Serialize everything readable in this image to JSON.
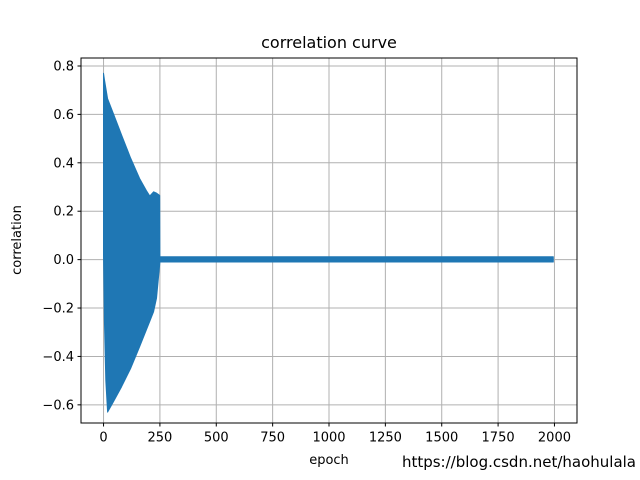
{
  "figure": {
    "watermark": "https://blog.csdn.net/haohulala"
  },
  "chart_data": {
    "type": "area",
    "title": "correlation curve",
    "xlabel": "epoch",
    "ylabel": "correlation",
    "xlim": [
      -100,
      2100
    ],
    "ylim": [
      -0.675,
      0.833
    ],
    "grid": true,
    "legend": "none",
    "x_ticks": [
      0,
      250,
      500,
      750,
      1000,
      1250,
      1500,
      1750,
      2000
    ],
    "x_tick_labels": [
      "0",
      "250",
      "500",
      "750",
      "1000",
      "1250",
      "1500",
      "1750",
      "2000"
    ],
    "y_ticks": [
      0.8,
      0.6,
      0.4,
      0.2,
      0.0,
      -0.2,
      -0.4,
      -0.6
    ],
    "y_tick_labels": [
      "0.8",
      "0.6",
      "0.4",
      "0.2",
      "0.0",
      "−0.2",
      "−0.4",
      "−0.6"
    ],
    "colors": {
      "series": "#1f77b4",
      "grid": "#b0b0b0",
      "spine": "#000000",
      "text": "#000000",
      "watermark": "#e9e9e9"
    },
    "series": [
      {
        "name": "correlation",
        "render": "envelope-fill",
        "note": "dense oscillating signal: amplitude decays from [-0.63, 0.77] at epoch 0 to ~0 near epoch 250, then a thin band around 0.0 until epoch 2000",
        "envelope_points": [
          {
            "x": 0,
            "upper": 0.77,
            "lower": 0.02
          },
          {
            "x": 4,
            "upper": 0.745,
            "lower": -0.25
          },
          {
            "x": 10,
            "upper": 0.71,
            "lower": -0.5
          },
          {
            "x": 18,
            "upper": 0.665,
            "lower": -0.63
          },
          {
            "x": 45,
            "upper": 0.6,
            "lower": -0.585
          },
          {
            "x": 80,
            "upper": 0.515,
            "lower": -0.525
          },
          {
            "x": 120,
            "upper": 0.42,
            "lower": -0.45
          },
          {
            "x": 160,
            "upper": 0.335,
            "lower": -0.36
          },
          {
            "x": 190,
            "upper": 0.285,
            "lower": -0.29
          },
          {
            "x": 205,
            "upper": 0.263,
            "lower": -0.255
          },
          {
            "x": 222,
            "upper": 0.28,
            "lower": -0.215
          },
          {
            "x": 235,
            "upper": 0.275,
            "lower": -0.16
          },
          {
            "x": 245,
            "upper": 0.268,
            "lower": -0.06
          },
          {
            "x": 249,
            "upper": 0.265,
            "lower": -0.02
          },
          {
            "x": 250,
            "upper": 0.012,
            "lower": -0.01
          },
          {
            "x": 1995,
            "upper": 0.012,
            "lower": -0.01
          }
        ]
      }
    ]
  }
}
